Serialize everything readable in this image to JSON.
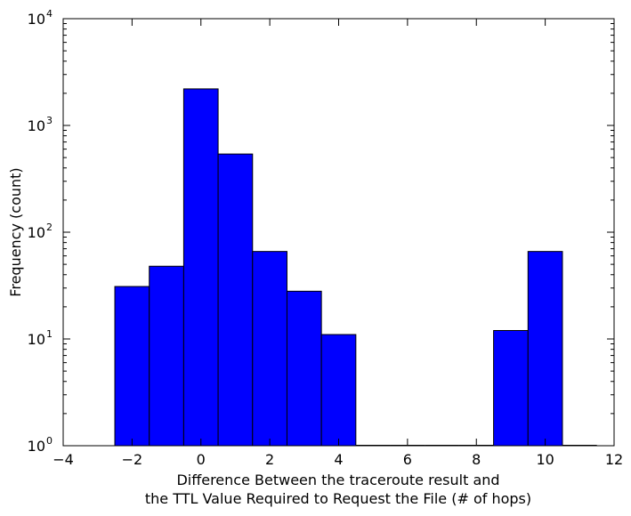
{
  "chart_data": {
    "type": "bar",
    "title": "",
    "xlabel_lines": [
      "Difference Between the traceroute result and",
      "the TTL Value Required to Request the File (# of hops)"
    ],
    "ylabel": "Frequency (count)",
    "xlim": [
      -4,
      12
    ],
    "ylim": [
      1,
      10000
    ],
    "yscale": "log",
    "grid": false,
    "legend": "none",
    "bar_color": "#0000ff",
    "edge_color": "#000000",
    "x_ticks": [
      -4,
      -2,
      0,
      2,
      4,
      6,
      8,
      10,
      12
    ],
    "x_tick_labels": [
      "−4",
      "−2",
      "0",
      "2",
      "4",
      "6",
      "8",
      "10",
      "12"
    ],
    "y_ticks": [
      {
        "value": 1,
        "base": "10",
        "exp": "0"
      },
      {
        "value": 10,
        "base": "10",
        "exp": "1"
      },
      {
        "value": 100,
        "base": "10",
        "exp": "2"
      },
      {
        "value": 1000,
        "base": "10",
        "exp": "3"
      },
      {
        "value": 10000,
        "base": "10",
        "exp": "4"
      }
    ],
    "bins": [
      {
        "left": -2.5,
        "right": -1.5,
        "count": 31
      },
      {
        "left": -1.5,
        "right": -0.5,
        "count": 48
      },
      {
        "left": -0.5,
        "right": 0.5,
        "count": 2200
      },
      {
        "left": 0.5,
        "right": 1.5,
        "count": 540
      },
      {
        "left": 1.5,
        "right": 2.5,
        "count": 66
      },
      {
        "left": 2.5,
        "right": 3.5,
        "count": 28
      },
      {
        "left": 3.5,
        "right": 4.5,
        "count": 11
      },
      {
        "left": 4.5,
        "right": 5.5,
        "count": 0
      },
      {
        "left": 5.5,
        "right": 6.5,
        "count": 0
      },
      {
        "left": 6.5,
        "right": 7.5,
        "count": 0
      },
      {
        "left": 7.5,
        "right": 8.5,
        "count": 0
      },
      {
        "left": 8.5,
        "right": 9.5,
        "count": 12
      },
      {
        "left": 9.5,
        "right": 10.5,
        "count": 66
      },
      {
        "left": 10.5,
        "right": 11.5,
        "count": 0
      }
    ]
  }
}
